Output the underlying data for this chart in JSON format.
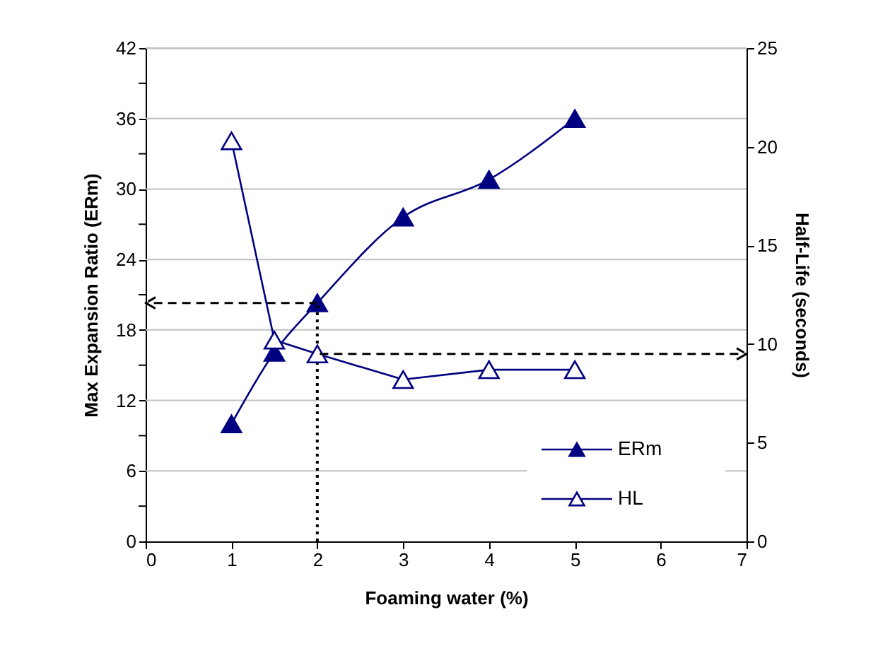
{
  "chart_data": {
    "type": "line",
    "xlabel": "Foaming water (%)",
    "ylabel": "Max Expansion Ratio (ERm)",
    "y2label": "Half-Life (seconds)",
    "x": [
      1,
      1.5,
      2,
      3,
      4,
      5
    ],
    "series": [
      {
        "name": "ERm",
        "color": "#000080",
        "values": [
          10.0,
          16.1,
          20.3,
          27.6,
          30.8,
          36.0
        ],
        "marker": "triangle"
      },
      {
        "name": "HL",
        "color": "#000080",
        "values": [
          20.3,
          10.2,
          9.5,
          8.2,
          8.7,
          8.7
        ],
        "axis": "y2",
        "marker": "triangle"
      }
    ],
    "xlim": [
      0,
      7
    ],
    "xticks": [
      0,
      1,
      2,
      3,
      4,
      5,
      6,
      7
    ],
    "ylim": [
      0,
      42
    ],
    "yticks": [
      0,
      {
        "value": 3,
        "label": null
      },
      6,
      {
        "value": 9,
        "label": null
      },
      12,
      {
        "value": 15,
        "label": null
      },
      18,
      {
        "value": 21,
        "label": null
      },
      24,
      {
        "value": 27,
        "label": null
      },
      30,
      {
        "value": 33,
        "label": null
      },
      36,
      {
        "value": 39,
        "label": null
      },
      42
    ],
    "y2lim": [
      0,
      25
    ],
    "y2ticks": [
      0,
      5,
      10,
      15,
      20,
      25
    ],
    "ref_lines": [
      {
        "axis": "y",
        "value": 20.3,
        "color": "#000000",
        "line_style": "dashed"
      },
      {
        "axis": "x",
        "value": 2,
        "color": "#000000",
        "line_style": "dotted"
      },
      {
        "axis": "y2",
        "value": 9.5,
        "color": "#000000",
        "line_style": "dashed"
      }
    ],
    "grid": "y",
    "legend": "bottom right"
  }
}
